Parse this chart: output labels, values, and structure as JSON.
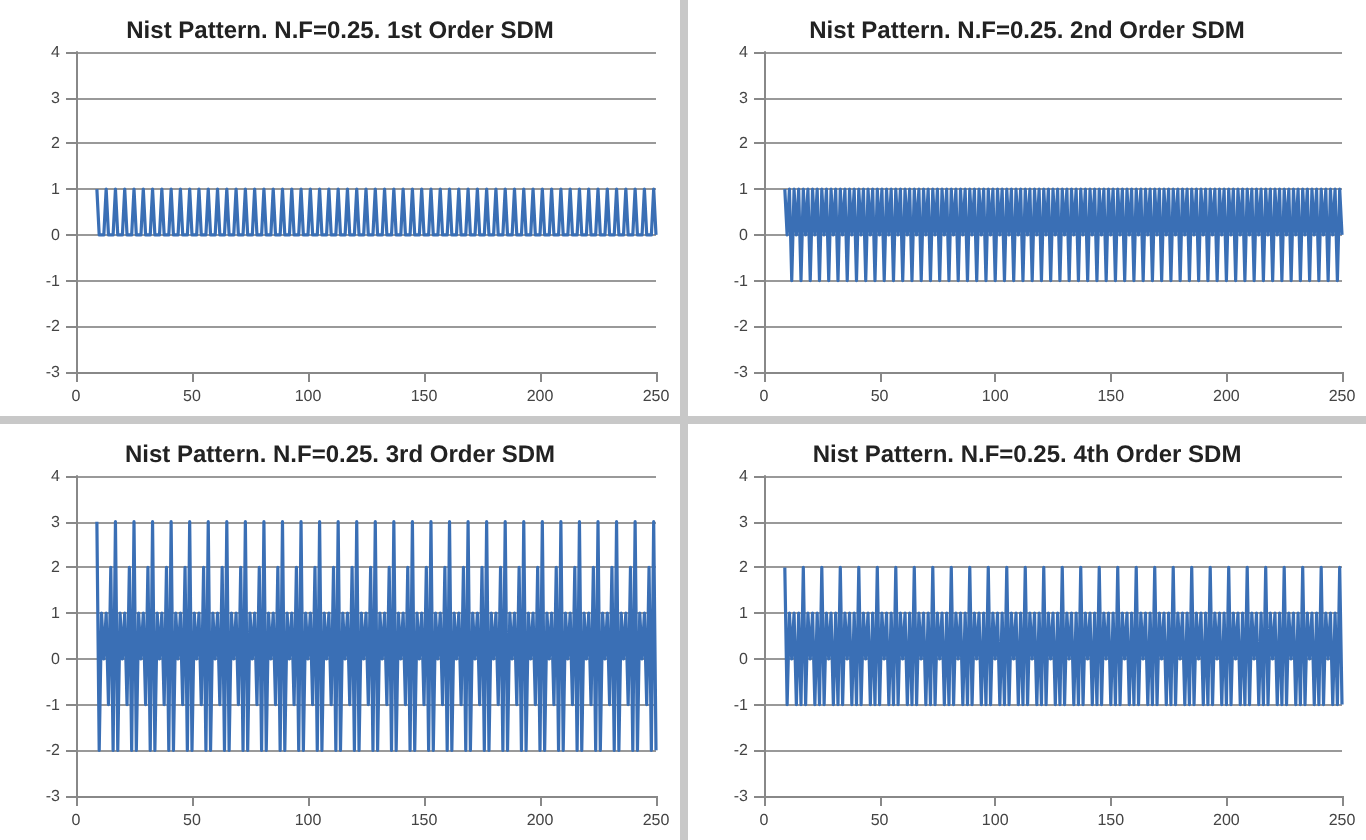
{
  "chart_data": [
    {
      "type": "line",
      "title": "Nist Pattern. N.F=0.25. 1st Order SDM",
      "color": "#3a6fb5",
      "marker": "none",
      "grid": "y",
      "xlim": [
        0,
        250
      ],
      "xticks": [
        0,
        50,
        100,
        150,
        200,
        250
      ],
      "ylim": [
        -3,
        4
      ],
      "yticks": [
        -3,
        -2,
        -1,
        0,
        1,
        2,
        3,
        4
      ],
      "x": [
        9,
        10,
        11,
        12,
        13,
        14,
        15,
        16,
        17,
        18,
        19,
        20,
        21,
        22,
        23,
        24,
        25,
        26,
        27,
        28,
        29,
        30,
        31,
        32,
        33,
        34,
        35,
        36,
        37,
        38,
        39,
        40,
        41,
        42,
        43,
        44,
        45,
        46,
        47,
        48,
        49,
        50,
        51,
        52,
        53,
        54,
        55,
        56,
        57,
        58,
        59,
        60,
        61,
        62,
        63,
        64,
        65,
        66,
        67,
        68,
        69,
        70,
        71,
        72,
        73,
        74,
        75,
        76,
        77,
        78,
        79,
        80,
        81,
        82,
        83,
        84,
        85,
        86,
        87,
        88,
        89,
        90,
        91,
        92,
        93,
        94,
        95,
        96,
        97,
        98,
        99,
        100,
        101,
        102,
        103,
        104,
        105,
        106,
        107,
        108,
        109,
        110,
        111,
        112,
        113,
        114,
        115,
        116,
        117,
        118,
        119,
        120,
        121,
        122,
        123,
        124,
        125,
        126,
        127,
        128,
        129,
        130,
        131,
        132,
        133,
        134,
        135,
        136,
        137,
        138,
        139,
        140,
        141,
        142,
        143,
        144,
        145,
        146,
        147,
        148,
        149,
        150,
        151,
        152,
        153,
        154,
        155,
        156,
        157,
        158,
        159,
        160,
        161,
        162,
        163,
        164,
        165,
        166,
        167,
        168,
        169,
        170,
        171,
        172,
        173,
        174,
        175,
        176,
        177,
        178,
        179,
        180,
        181,
        182,
        183,
        184,
        185,
        186,
        187,
        188,
        189,
        190,
        191,
        192,
        193,
        194,
        195,
        196,
        197,
        198,
        199,
        200,
        201,
        202,
        203,
        204,
        205,
        206,
        207,
        208,
        209,
        210,
        211,
        212,
        213,
        214,
        215,
        216,
        217,
        218,
        219,
        220,
        221,
        222,
        223,
        224,
        225,
        226,
        227,
        228,
        229,
        230,
        231,
        232,
        233,
        234,
        235,
        236,
        237,
        238,
        239,
        240,
        241,
        242,
        243,
        244,
        245,
        246,
        247,
        248,
        249,
        250
      ],
      "values": [
        1,
        0,
        0,
        0,
        1,
        0,
        0,
        0,
        1,
        0,
        0,
        0,
        1,
        0,
        0,
        0,
        1,
        0,
        0,
        0,
        1,
        0,
        0,
        0,
        1,
        0,
        0,
        0,
        1,
        0,
        0,
        0,
        1,
        0,
        0,
        0,
        1,
        0,
        0,
        0,
        1,
        0,
        0,
        0,
        1,
        0,
        0,
        0,
        1,
        0,
        0,
        0,
        1,
        0,
        0,
        0,
        1,
        0,
        0,
        0,
        1,
        0,
        0,
        0,
        1,
        0,
        0,
        0,
        1,
        0,
        0,
        0,
        1,
        0,
        0,
        0,
        1,
        0,
        0,
        0,
        1,
        0,
        0,
        0,
        1,
        0,
        0,
        0,
        1,
        0,
        0,
        0,
        1,
        0,
        0,
        0,
        1,
        0,
        0,
        0,
        1,
        0,
        0,
        0,
        1,
        0,
        0,
        0,
        1,
        0,
        0,
        0,
        1,
        0,
        0,
        0,
        1,
        0,
        0,
        0,
        1,
        0,
        0,
        0,
        1,
        0,
        0,
        0,
        1,
        0,
        0,
        0,
        1,
        0,
        0,
        0,
        1,
        0,
        0,
        0,
        1,
        0,
        0,
        0,
        1,
        0,
        0,
        0,
        1,
        0,
        0,
        0,
        1,
        0,
        0,
        0,
        1,
        0,
        0,
        0,
        1,
        0,
        0,
        0,
        1,
        0,
        0,
        0,
        1,
        0,
        0,
        0,
        1,
        0,
        0,
        0,
        1,
        0,
        0,
        0,
        1,
        0,
        0,
        0,
        1,
        0,
        0,
        0,
        1,
        0,
        0,
        0,
        1,
        0,
        0,
        0,
        1,
        0,
        0,
        0,
        1,
        0,
        0,
        0,
        1,
        0,
        0,
        0,
        1,
        0,
        0,
        0,
        1,
        0,
        0,
        0,
        1,
        0,
        0,
        0,
        1,
        0,
        0,
        0,
        1,
        0,
        0,
        0,
        1,
        0,
        0,
        0,
        1,
        0,
        0,
        0,
        1,
        0,
        0,
        0,
        1,
        0
      ]
    },
    {
      "type": "line",
      "title": "Nist Pattern. N.F=0.25. 2nd Order SDM",
      "color": "#3a6fb5",
      "marker": "none",
      "grid": "y",
      "xlim": [
        0,
        250
      ],
      "xticks": [
        0,
        50,
        100,
        150,
        200,
        250
      ],
      "ylim": [
        -3,
        4
      ],
      "yticks": [
        -3,
        -2,
        -1,
        0,
        1,
        2,
        3,
        4
      ],
      "x": [
        9,
        10,
        11,
        12,
        13,
        14,
        15,
        16,
        17,
        18,
        19,
        20,
        21,
        22,
        23,
        24,
        25,
        26,
        27,
        28,
        29,
        30,
        31,
        32,
        33,
        34,
        35,
        36,
        37,
        38,
        39,
        40,
        41,
        42,
        43,
        44,
        45,
        46,
        47,
        48,
        49,
        50,
        51,
        52,
        53,
        54,
        55,
        56,
        57,
        58,
        59,
        60,
        61,
        62,
        63,
        64,
        65,
        66,
        67,
        68,
        69,
        70,
        71,
        72,
        73,
        74,
        75,
        76,
        77,
        78,
        79,
        80,
        81,
        82,
        83,
        84,
        85,
        86,
        87,
        88,
        89,
        90,
        91,
        92,
        93,
        94,
        95,
        96,
        97,
        98,
        99,
        100,
        101,
        102,
        103,
        104,
        105,
        106,
        107,
        108,
        109,
        110,
        111,
        112,
        113,
        114,
        115,
        116,
        117,
        118,
        119,
        120,
        121,
        122,
        123,
        124,
        125,
        126,
        127,
        128,
        129,
        130,
        131,
        132,
        133,
        134,
        135,
        136,
        137,
        138,
        139,
        140,
        141,
        142,
        143,
        144,
        145,
        146,
        147,
        148,
        149,
        150,
        151,
        152,
        153,
        154,
        155,
        156,
        157,
        158,
        159,
        160,
        161,
        162,
        163,
        164,
        165,
        166,
        167,
        168,
        169,
        170,
        171,
        172,
        173,
        174,
        175,
        176,
        177,
        178,
        179,
        180,
        181,
        182,
        183,
        184,
        185,
        186,
        187,
        188,
        189,
        190,
        191,
        192,
        193,
        194,
        195,
        196,
        197,
        198,
        199,
        200,
        201,
        202,
        203,
        204,
        205,
        206,
        207,
        208,
        209,
        210,
        211,
        212,
        213,
        214,
        215,
        216,
        217,
        218,
        219,
        220,
        221,
        222,
        223,
        224,
        225,
        226,
        227,
        228,
        229,
        230,
        231,
        232,
        233,
        234,
        235,
        236,
        237,
        238,
        239,
        240,
        241,
        242,
        243,
        244,
        245,
        246,
        247,
        248,
        249,
        250
      ],
      "values": [
        1,
        0,
        1,
        -1,
        1,
        0,
        1,
        -1,
        1,
        0,
        1,
        -1,
        1,
        0,
        1,
        -1,
        1,
        0,
        1,
        -1,
        1,
        0,
        1,
        -1,
        1,
        0,
        1,
        -1,
        1,
        0,
        1,
        -1,
        1,
        0,
        1,
        -1,
        1,
        0,
        1,
        -1,
        1,
        0,
        1,
        -1,
        1,
        0,
        1,
        -1,
        1,
        0,
        1,
        -1,
        1,
        0,
        1,
        -1,
        1,
        0,
        1,
        -1,
        1,
        0,
        1,
        -1,
        1,
        0,
        1,
        -1,
        1,
        0,
        1,
        -1,
        1,
        0,
        1,
        -1,
        1,
        0,
        1,
        -1,
        1,
        0,
        1,
        -1,
        1,
        0,
        1,
        -1,
        1,
        0,
        1,
        -1,
        1,
        0,
        1,
        -1,
        1,
        0,
        1,
        -1,
        1,
        0,
        1,
        -1,
        1,
        0,
        1,
        -1,
        1,
        0,
        1,
        -1,
        1,
        0,
        1,
        -1,
        1,
        0,
        1,
        -1,
        1,
        0,
        1,
        -1,
        1,
        0,
        1,
        -1,
        1,
        0,
        1,
        -1,
        1,
        0,
        1,
        -1,
        1,
        0,
        1,
        -1,
        1,
        0,
        1,
        -1,
        1,
        0,
        1,
        -1,
        1,
        0,
        1,
        -1,
        1,
        0,
        1,
        -1,
        1,
        0,
        1,
        -1,
        1,
        0,
        1,
        -1,
        1,
        0,
        1,
        -1,
        1,
        0,
        1,
        -1,
        1,
        0,
        1,
        -1,
        1,
        0,
        1,
        -1,
        1,
        0,
        1,
        -1,
        1,
        0,
        1,
        -1,
        1,
        0,
        1,
        -1,
        1,
        0,
        1,
        -1,
        1,
        0,
        1,
        -1,
        1,
        0,
        1,
        -1,
        1,
        0,
        1,
        -1,
        1,
        0,
        1,
        -1,
        1,
        0,
        1,
        -1,
        1,
        0,
        1,
        -1,
        1,
        0,
        1,
        -1,
        1,
        0,
        1,
        -1,
        1,
        0,
        1,
        -1,
        1,
        0,
        1,
        -1,
        1,
        0,
        1,
        -1,
        1,
        0
      ]
    },
    {
      "type": "line",
      "title": "Nist Pattern. N.F=0.25. 3rd Order SDM",
      "color": "#3a6fb5",
      "marker": "none",
      "grid": "y",
      "xlim": [
        0,
        250
      ],
      "xticks": [
        0,
        50,
        100,
        150,
        200,
        250
      ],
      "ylim": [
        -3,
        4
      ],
      "yticks": [
        -3,
        -2,
        -1,
        0,
        1,
        2,
        3,
        4
      ],
      "x": [
        9,
        10,
        11,
        12,
        13,
        14,
        15,
        16,
        17,
        18,
        19,
        20,
        21,
        22,
        23,
        24,
        25,
        26,
        27,
        28,
        29,
        30,
        31,
        32,
        33,
        34,
        35,
        36,
        37,
        38,
        39,
        40,
        41,
        42,
        43,
        44,
        45,
        46,
        47,
        48,
        49,
        50,
        51,
        52,
        53,
        54,
        55,
        56,
        57,
        58,
        59,
        60,
        61,
        62,
        63,
        64,
        65,
        66,
        67,
        68,
        69,
        70,
        71,
        72,
        73,
        74,
        75,
        76,
        77,
        78,
        79,
        80,
        81,
        82,
        83,
        84,
        85,
        86,
        87,
        88,
        89,
        90,
        91,
        92,
        93,
        94,
        95,
        96,
        97,
        98,
        99,
        100,
        101,
        102,
        103,
        104,
        105,
        106,
        107,
        108,
        109,
        110,
        111,
        112,
        113,
        114,
        115,
        116,
        117,
        118,
        119,
        120,
        121,
        122,
        123,
        124,
        125,
        126,
        127,
        128,
        129,
        130,
        131,
        132,
        133,
        134,
        135,
        136,
        137,
        138,
        139,
        140,
        141,
        142,
        143,
        144,
        145,
        146,
        147,
        148,
        149,
        150,
        151,
        152,
        153,
        154,
        155,
        156,
        157,
        158,
        159,
        160,
        161,
        162,
        163,
        164,
        165,
        166,
        167,
        168,
        169,
        170,
        171,
        172,
        173,
        174,
        175,
        176,
        177,
        178,
        179,
        180,
        181,
        182,
        183,
        184,
        185,
        186,
        187,
        188,
        189,
        190,
        191,
        192,
        193,
        194,
        195,
        196,
        197,
        198,
        199,
        200,
        201,
        202,
        203,
        204,
        205,
        206,
        207,
        208,
        209,
        210,
        211,
        212,
        213,
        214,
        215,
        216,
        217,
        218,
        219,
        220,
        221,
        222,
        223,
        224,
        225,
        226,
        227,
        228,
        229,
        230,
        231,
        232,
        233,
        234,
        235,
        236,
        237,
        238,
        239,
        240,
        241,
        242,
        243,
        244,
        245,
        246,
        247,
        248,
        249,
        250
      ],
      "values": [
        3,
        -2,
        1,
        0,
        1,
        -1,
        2,
        -2,
        3,
        -2,
        1,
        0,
        1,
        -1,
        2,
        -2,
        3,
        -2,
        1,
        0,
        1,
        -1,
        2,
        -2,
        3,
        -2,
        1,
        0,
        1,
        -1,
        2,
        -2,
        3,
        -2,
        1,
        0,
        1,
        -1,
        2,
        -2,
        3,
        -2,
        1,
        0,
        1,
        -1,
        2,
        -2,
        3,
        -2,
        1,
        0,
        1,
        -1,
        2,
        -2,
        3,
        -2,
        1,
        0,
        1,
        -1,
        2,
        -2,
        3,
        -2,
        1,
        0,
        1,
        -1,
        2,
        -2,
        3,
        -2,
        1,
        0,
        1,
        -1,
        2,
        -2,
        3,
        -2,
        1,
        0,
        1,
        -1,
        2,
        -2,
        3,
        -2,
        1,
        0,
        1,
        -1,
        2,
        -2,
        3,
        -2,
        1,
        0,
        1,
        -1,
        2,
        -2,
        3,
        -2,
        1,
        0,
        1,
        -1,
        2,
        -2,
        3,
        -2,
        1,
        0,
        1,
        -1,
        2,
        -2,
        3,
        -2,
        1,
        0,
        1,
        -1,
        2,
        -2,
        3,
        -2,
        1,
        0,
        1,
        -1,
        2,
        -2,
        3,
        -2,
        1,
        0,
        1,
        -1,
        2,
        -2,
        3,
        -2,
        1,
        0,
        1,
        -1,
        2,
        -2,
        3,
        -2,
        1,
        0,
        1,
        -1,
        2,
        -2,
        3,
        -2,
        1,
        0,
        1,
        -1,
        2,
        -2,
        3,
        -2,
        1,
        0,
        1,
        -1,
        2,
        -2,
        3,
        -2,
        1,
        0,
        1,
        -1,
        2,
        -2,
        3,
        -2,
        1,
        0,
        1,
        -1,
        2,
        -2,
        3,
        -2,
        1,
        0,
        1,
        -1,
        2,
        -2,
        3,
        -2,
        1,
        0,
        1,
        -1,
        2,
        -2,
        3,
        -2,
        1,
        0,
        1,
        -1,
        2,
        -2,
        3,
        -2,
        1,
        0,
        1,
        -1,
        2,
        -2,
        3,
        -2,
        1,
        0,
        1,
        -1,
        2,
        -2,
        3,
        -2,
        1,
        0,
        1,
        -1,
        2,
        -2,
        3,
        -2
      ]
    },
    {
      "type": "line",
      "title": "Nist Pattern. N.F=0.25. 4th Order SDM",
      "color": "#3a6fb5",
      "marker": "none",
      "grid": "y",
      "xlim": [
        0,
        250
      ],
      "xticks": [
        0,
        50,
        100,
        150,
        200,
        250
      ],
      "ylim": [
        -3,
        4
      ],
      "yticks": [
        -3,
        -2,
        -1,
        0,
        1,
        2,
        3,
        4
      ],
      "x": [
        9,
        10,
        11,
        12,
        13,
        14,
        15,
        16,
        17,
        18,
        19,
        20,
        21,
        22,
        23,
        24,
        25,
        26,
        27,
        28,
        29,
        30,
        31,
        32,
        33,
        34,
        35,
        36,
        37,
        38,
        39,
        40,
        41,
        42,
        43,
        44,
        45,
        46,
        47,
        48,
        49,
        50,
        51,
        52,
        53,
        54,
        55,
        56,
        57,
        58,
        59,
        60,
        61,
        62,
        63,
        64,
        65,
        66,
        67,
        68,
        69,
        70,
        71,
        72,
        73,
        74,
        75,
        76,
        77,
        78,
        79,
        80,
        81,
        82,
        83,
        84,
        85,
        86,
        87,
        88,
        89,
        90,
        91,
        92,
        93,
        94,
        95,
        96,
        97,
        98,
        99,
        100,
        101,
        102,
        103,
        104,
        105,
        106,
        107,
        108,
        109,
        110,
        111,
        112,
        113,
        114,
        115,
        116,
        117,
        118,
        119,
        120,
        121,
        122,
        123,
        124,
        125,
        126,
        127,
        128,
        129,
        130,
        131,
        132,
        133,
        134,
        135,
        136,
        137,
        138,
        139,
        140,
        141,
        142,
        143,
        144,
        145,
        146,
        147,
        148,
        149,
        150,
        151,
        152,
        153,
        154,
        155,
        156,
        157,
        158,
        159,
        160,
        161,
        162,
        163,
        164,
        165,
        166,
        167,
        168,
        169,
        170,
        171,
        172,
        173,
        174,
        175,
        176,
        177,
        178,
        179,
        180,
        181,
        182,
        183,
        184,
        185,
        186,
        187,
        188,
        189,
        190,
        191,
        192,
        193,
        194,
        195,
        196,
        197,
        198,
        199,
        200,
        201,
        202,
        203,
        204,
        205,
        206,
        207,
        208,
        209,
        210,
        211,
        212,
        213,
        214,
        215,
        216,
        217,
        218,
        219,
        220,
        221,
        222,
        223,
        224,
        225,
        226,
        227,
        228,
        229,
        230,
        231,
        232,
        233,
        234,
        235,
        236,
        237,
        238,
        239,
        240,
        241,
        242,
        243,
        244,
        245,
        246,
        247,
        248,
        249,
        250
      ],
      "values": [
        2,
        -1,
        1,
        0,
        1,
        -1,
        1,
        -1,
        2,
        -1,
        1,
        0,
        1,
        -1,
        1,
        -1,
        2,
        -1,
        1,
        0,
        1,
        -1,
        1,
        -1,
        2,
        -1,
        1,
        0,
        1,
        -1,
        1,
        -1,
        2,
        -1,
        1,
        0,
        1,
        -1,
        1,
        -1,
        2,
        -1,
        1,
        0,
        1,
        -1,
        1,
        -1,
        2,
        -1,
        1,
        0,
        1,
        -1,
        1,
        -1,
        2,
        -1,
        1,
        0,
        1,
        -1,
        1,
        -1,
        2,
        -1,
        1,
        0,
        1,
        -1,
        1,
        -1,
        2,
        -1,
        1,
        0,
        1,
        -1,
        1,
        -1,
        2,
        -1,
        1,
        0,
        1,
        -1,
        1,
        -1,
        2,
        -1,
        1,
        0,
        1,
        -1,
        1,
        -1,
        2,
        -1,
        1,
        0,
        1,
        -1,
        1,
        -1,
        2,
        -1,
        1,
        0,
        1,
        -1,
        1,
        -1,
        2,
        -1,
        1,
        0,
        1,
        -1,
        1,
        -1,
        2,
        -1,
        1,
        0,
        1,
        -1,
        1,
        -1,
        2,
        -1,
        1,
        0,
        1,
        -1,
        1,
        -1,
        2,
        -1,
        1,
        0,
        1,
        -1,
        1,
        -1,
        2,
        -1,
        1,
        0,
        1,
        -1,
        1,
        -1,
        2,
        -1,
        1,
        0,
        1,
        -1,
        1,
        -1,
        2,
        -1,
        1,
        0,
        1,
        -1,
        1,
        -1,
        2,
        -1,
        1,
        0,
        1,
        -1,
        1,
        -1,
        2,
        -1,
        1,
        0,
        1,
        -1,
        1,
        -1,
        2,
        -1,
        1,
        0,
        1,
        -1,
        1,
        -1,
        2,
        -1,
        1,
        0,
        1,
        -1,
        1,
        -1,
        2,
        -1,
        1,
        0,
        1,
        -1,
        1,
        -1,
        2,
        -1,
        1,
        0,
        1,
        -1,
        1,
        -1,
        2,
        -1,
        1,
        0,
        1,
        -1,
        1,
        -1,
        2,
        -1,
        1,
        0,
        1,
        -1,
        1,
        -1,
        2,
        -1,
        1,
        0,
        1,
        -1,
        1,
        -1,
        2,
        -1
      ]
    }
  ]
}
